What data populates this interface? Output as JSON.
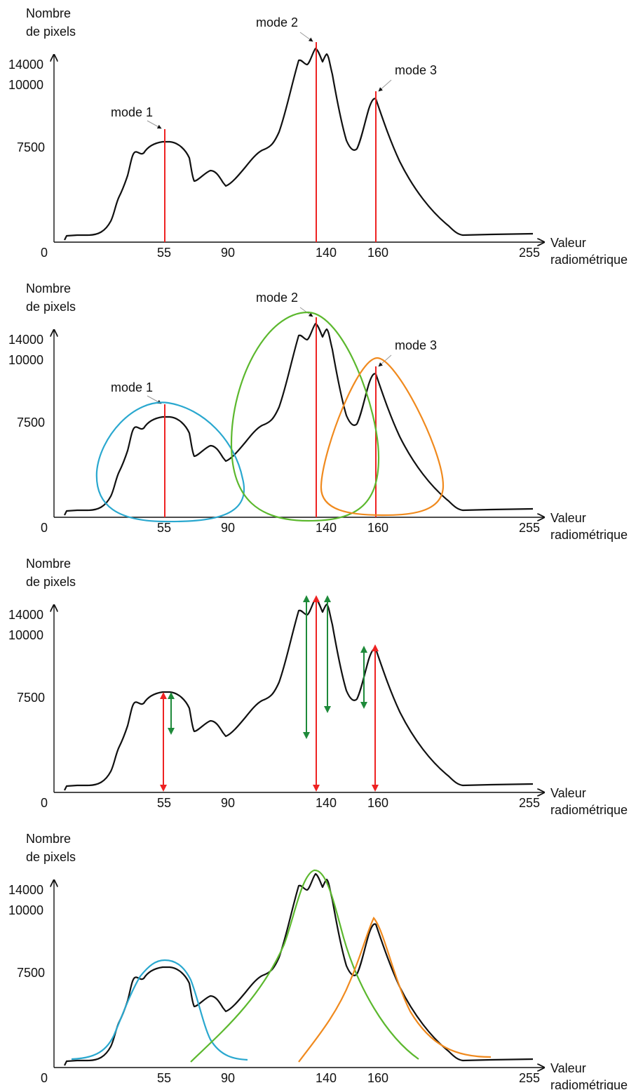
{
  "colors": {
    "histogram": "#111111",
    "mode_line": "#ee2222",
    "arrow_green": "#1e8a3a",
    "mode1_curve": "#2aa8cf",
    "mode2_curve": "#5cb82e",
    "mode3_curve": "#f08a1e"
  },
  "axis": {
    "ylabel_line1": "Nombre",
    "ylabel_line2": "de pixels",
    "xlabel_line1": "Valeur",
    "xlabel_line2": "radiométrique",
    "origin": "0",
    "x_ticks": [
      "55",
      "90",
      "140",
      "160",
      "255"
    ],
    "y_ticks": [
      "14000",
      "10000",
      "7500"
    ]
  },
  "modes": {
    "mode1": "mode 1",
    "mode2": "mode 2",
    "mode3": "mode 3"
  },
  "panels": [
    {
      "id": "panel-1",
      "content": "histogram with mode lines"
    },
    {
      "id": "panel-2",
      "content": "histogram with mode ellipses"
    },
    {
      "id": "panel-3",
      "content": "histogram with height arrows"
    },
    {
      "id": "panel-4",
      "content": "histogram with fitted curves"
    }
  ]
}
